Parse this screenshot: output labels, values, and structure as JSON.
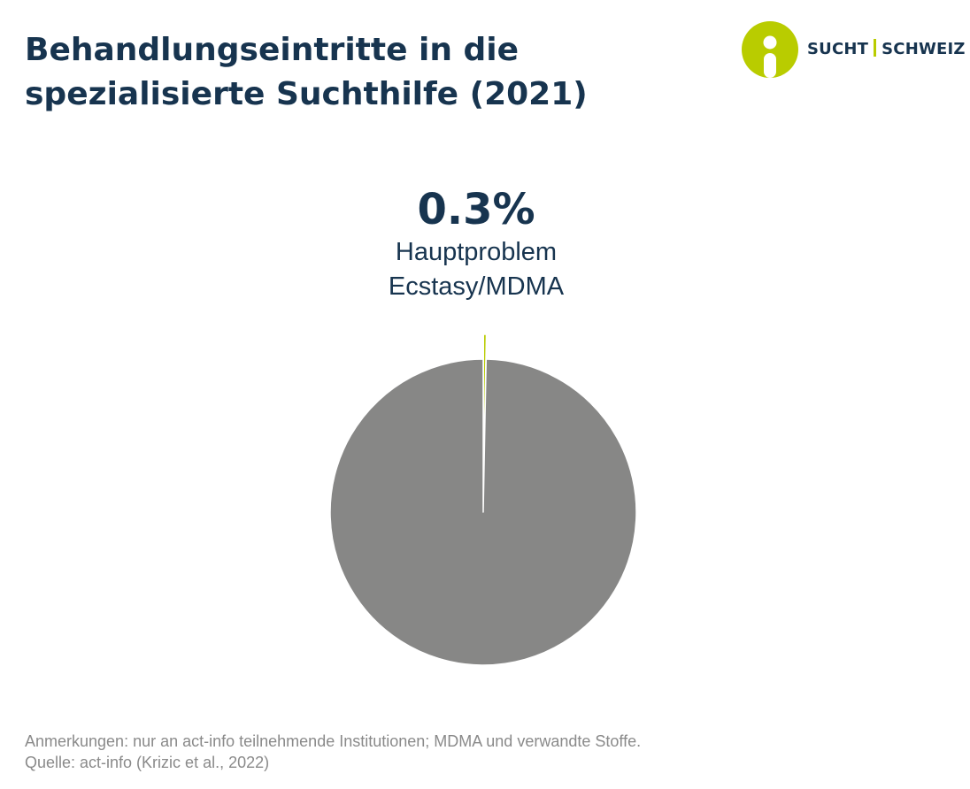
{
  "title": {
    "line1": "Behandlungseintritte in die",
    "line2": "spezialisierte Suchthilfe (2021)"
  },
  "logo": {
    "part1": "SUCHT",
    "part2": "SCHWEIZ",
    "icon": "person-in-circle-icon",
    "color_circle": "#b9cc00"
  },
  "chart_data": {
    "type": "pie",
    "slices": [
      {
        "value": 0.3,
        "value_label": "0.3%",
        "label_lines": [
          "Hauptproblem",
          "Ecstasy/MDMA"
        ],
        "color": "#b9cc00",
        "exploded": true
      },
      {
        "value": 99.7,
        "color": "#878786",
        "exploded": false
      }
    ]
  },
  "footnote": {
    "notes": "Anmerkungen: nur an act-info teilnehmende Institutionen; MDMA und verwandte Stoffe.",
    "source": "Quelle: act-info (Krizic et al., 2022)"
  }
}
